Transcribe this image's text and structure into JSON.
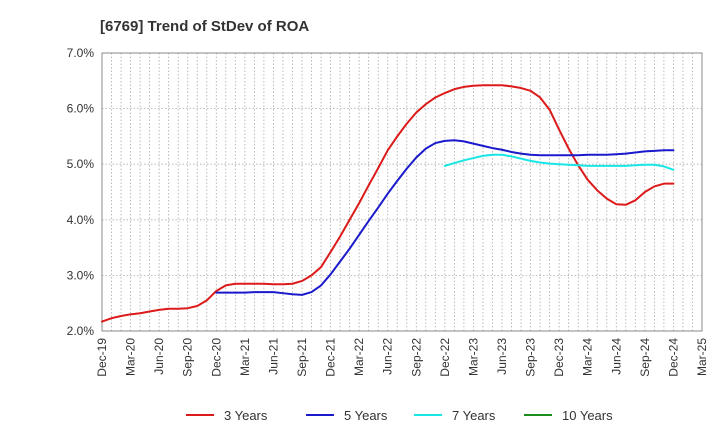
{
  "chart_data": {
    "type": "line",
    "title": "[6769]  Trend of StDev of ROA",
    "xlabel": "",
    "ylabel": "",
    "x_ticks": [
      "Dec-19",
      "Mar-20",
      "Jun-20",
      "Sep-20",
      "Dec-20",
      "Mar-21",
      "Jun-21",
      "Sep-21",
      "Dec-21",
      "Mar-22",
      "Jun-22",
      "Sep-22",
      "Dec-22",
      "Mar-23",
      "Jun-23",
      "Sep-23",
      "Dec-23",
      "Mar-24",
      "Jun-24",
      "Sep-24",
      "Dec-24",
      "Mar-25"
    ],
    "y_ticks": [
      "2.0%",
      "3.0%",
      "4.0%",
      "5.0%",
      "6.0%",
      "7.0%"
    ],
    "ylim": [
      2.0,
      7.0
    ],
    "grid": true,
    "legend_position": "bottom",
    "series": [
      {
        "name": "3 Years",
        "color": "#dd1a1a",
        "points": [
          [
            "Dec-19",
            2.17
          ],
          [
            "Jan-20",
            2.23
          ],
          [
            "Feb-20",
            2.27
          ],
          [
            "Mar-20",
            2.3
          ],
          [
            "Apr-20",
            2.32
          ],
          [
            "May-20",
            2.35
          ],
          [
            "Jun-20",
            2.38
          ],
          [
            "Jul-20",
            2.4
          ],
          [
            "Aug-20",
            2.4
          ],
          [
            "Sep-20",
            2.41
          ],
          [
            "Oct-20",
            2.45
          ],
          [
            "Nov-20",
            2.55
          ],
          [
            "Dec-20",
            2.72
          ],
          [
            "Jan-21",
            2.82
          ],
          [
            "Feb-21",
            2.85
          ],
          [
            "Mar-21",
            2.85
          ],
          [
            "Apr-21",
            2.85
          ],
          [
            "May-21",
            2.85
          ],
          [
            "Jun-21",
            2.84
          ],
          [
            "Jul-21",
            2.84
          ],
          [
            "Aug-21",
            2.85
          ],
          [
            "Sep-21",
            2.9
          ],
          [
            "Oct-21",
            3.0
          ],
          [
            "Nov-21",
            3.15
          ],
          [
            "Dec-21",
            3.42
          ],
          [
            "Jan-22",
            3.7
          ],
          [
            "Feb-22",
            4.0
          ],
          [
            "Mar-22",
            4.3
          ],
          [
            "Apr-22",
            4.62
          ],
          [
            "May-22",
            4.93
          ],
          [
            "Jun-22",
            5.25
          ],
          [
            "Jul-22",
            5.5
          ],
          [
            "Aug-22",
            5.73
          ],
          [
            "Sep-22",
            5.93
          ],
          [
            "Oct-22",
            6.08
          ],
          [
            "Nov-22",
            6.2
          ],
          [
            "Dec-22",
            6.28
          ],
          [
            "Jan-23",
            6.35
          ],
          [
            "Feb-23",
            6.39
          ],
          [
            "Mar-23",
            6.41
          ],
          [
            "Apr-23",
            6.42
          ],
          [
            "May-23",
            6.42
          ],
          [
            "Jun-23",
            6.42
          ],
          [
            "Jul-23",
            6.4
          ],
          [
            "Aug-23",
            6.37
          ],
          [
            "Sep-23",
            6.32
          ],
          [
            "Oct-23",
            6.2
          ],
          [
            "Nov-23",
            5.98
          ],
          [
            "Dec-23",
            5.62
          ],
          [
            "Jan-24",
            5.28
          ],
          [
            "Feb-24",
            4.98
          ],
          [
            "Mar-24",
            4.72
          ],
          [
            "Apr-24",
            4.53
          ],
          [
            "May-24",
            4.38
          ],
          [
            "Jun-24",
            4.28
          ],
          [
            "Jul-24",
            4.27
          ],
          [
            "Aug-24",
            4.35
          ],
          [
            "Sep-24",
            4.5
          ],
          [
            "Oct-24",
            4.6
          ],
          [
            "Nov-24",
            4.65
          ],
          [
            "Dec-24",
            4.65
          ]
        ]
      },
      {
        "name": "5 Years",
        "color": "#1a1acc",
        "points": [
          [
            "Dec-20",
            2.69
          ],
          [
            "Jan-21",
            2.69
          ],
          [
            "Feb-21",
            2.69
          ],
          [
            "Mar-21",
            2.69
          ],
          [
            "Apr-21",
            2.7
          ],
          [
            "May-21",
            2.7
          ],
          [
            "Jun-21",
            2.7
          ],
          [
            "Jul-21",
            2.68
          ],
          [
            "Aug-21",
            2.66
          ],
          [
            "Sep-21",
            2.65
          ],
          [
            "Oct-21",
            2.7
          ],
          [
            "Nov-21",
            2.82
          ],
          [
            "Dec-21",
            3.02
          ],
          [
            "Jan-22",
            3.25
          ],
          [
            "Feb-22",
            3.48
          ],
          [
            "Mar-22",
            3.73
          ],
          [
            "Apr-22",
            3.98
          ],
          [
            "May-22",
            4.22
          ],
          [
            "Jun-22",
            4.47
          ],
          [
            "Jul-22",
            4.7
          ],
          [
            "Aug-22",
            4.92
          ],
          [
            "Sep-22",
            5.12
          ],
          [
            "Oct-22",
            5.28
          ],
          [
            "Nov-22",
            5.38
          ],
          [
            "Dec-22",
            5.42
          ],
          [
            "Jan-23",
            5.43
          ],
          [
            "Feb-23",
            5.41
          ],
          [
            "Mar-23",
            5.37
          ],
          [
            "Apr-23",
            5.33
          ],
          [
            "May-23",
            5.29
          ],
          [
            "Jun-23",
            5.26
          ],
          [
            "Jul-23",
            5.22
          ],
          [
            "Aug-23",
            5.19
          ],
          [
            "Sep-23",
            5.17
          ],
          [
            "Oct-23",
            5.16
          ],
          [
            "Nov-23",
            5.16
          ],
          [
            "Dec-23",
            5.16
          ],
          [
            "Jan-24",
            5.16
          ],
          [
            "Feb-24",
            5.16
          ],
          [
            "Mar-24",
            5.17
          ],
          [
            "Apr-24",
            5.17
          ],
          [
            "May-24",
            5.17
          ],
          [
            "Jun-24",
            5.18
          ],
          [
            "Jul-24",
            5.19
          ],
          [
            "Aug-24",
            5.21
          ],
          [
            "Sep-24",
            5.23
          ],
          [
            "Oct-24",
            5.24
          ],
          [
            "Nov-24",
            5.25
          ],
          [
            "Dec-24",
            5.25
          ]
        ]
      },
      {
        "name": "7 Years",
        "color": "#1ae6e6",
        "points": [
          [
            "Dec-22",
            4.97
          ],
          [
            "Jan-23",
            5.02
          ],
          [
            "Feb-23",
            5.07
          ],
          [
            "Mar-23",
            5.11
          ],
          [
            "Apr-23",
            5.15
          ],
          [
            "May-23",
            5.17
          ],
          [
            "Jun-23",
            5.17
          ],
          [
            "Jul-23",
            5.14
          ],
          [
            "Aug-23",
            5.1
          ],
          [
            "Sep-23",
            5.06
          ],
          [
            "Oct-23",
            5.03
          ],
          [
            "Nov-23",
            5.01
          ],
          [
            "Dec-23",
            5.0
          ],
          [
            "Jan-24",
            4.99
          ],
          [
            "Feb-24",
            4.98
          ],
          [
            "Mar-24",
            4.97
          ],
          [
            "Apr-24",
            4.97
          ],
          [
            "May-24",
            4.97
          ],
          [
            "Jun-24",
            4.97
          ],
          [
            "Jul-24",
            4.97
          ],
          [
            "Aug-24",
            4.98
          ],
          [
            "Sep-24",
            4.99
          ],
          [
            "Oct-24",
            4.99
          ],
          [
            "Nov-24",
            4.96
          ],
          [
            "Dec-24",
            4.9
          ]
        ]
      },
      {
        "name": "10 Years",
        "color": "#1a8c1a",
        "points": []
      }
    ]
  }
}
